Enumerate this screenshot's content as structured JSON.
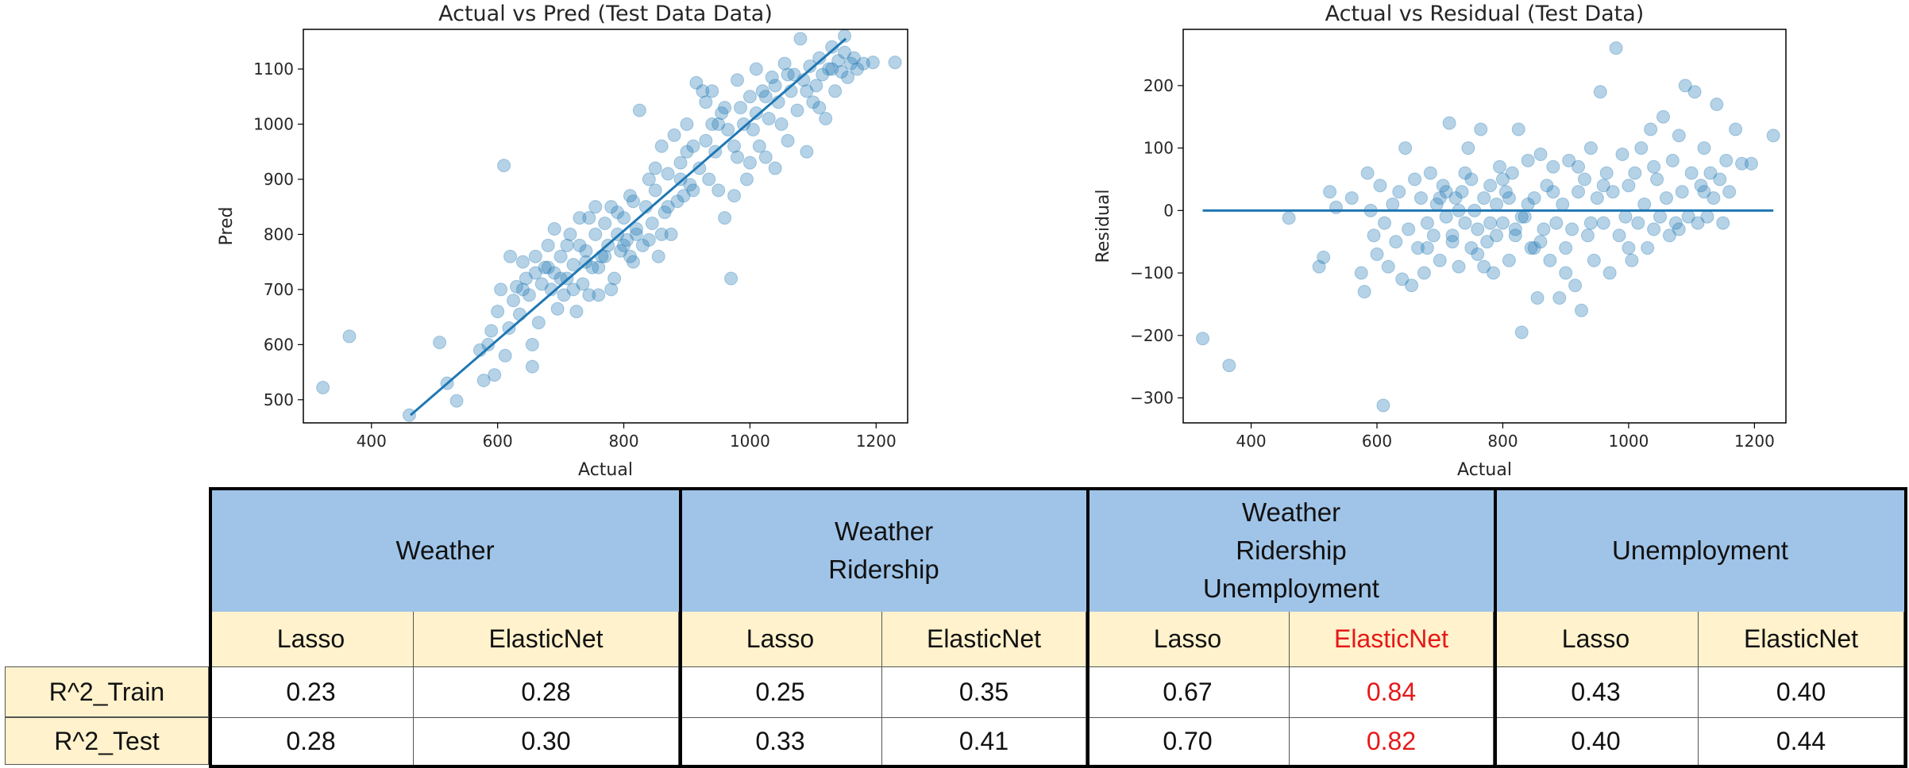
{
  "chart_data": [
    {
      "type": "scatter",
      "title": "Actual vs Pred (Test Data Data)",
      "xlabel": "Actual",
      "ylabel": "Pred",
      "xlim": [
        292,
        1250
      ],
      "ylim": [
        458,
        1172
      ],
      "xticks": [
        400,
        600,
        800,
        1000,
        1200
      ],
      "yticks": [
        500,
        600,
        700,
        800,
        900,
        1000,
        1100
      ],
      "grid": false,
      "color": "#1f77b4",
      "fit_line": {
        "x": [
          462,
          1152
        ],
        "y": [
          472,
          1155
        ]
      },
      "points": [
        [
          323,
          522
        ],
        [
          365,
          615
        ],
        [
          460,
          472
        ],
        [
          508,
          604
        ],
        [
          520,
          530
        ],
        [
          535,
          498
        ],
        [
          572,
          590
        ],
        [
          578,
          535
        ],
        [
          585,
          600
        ],
        [
          590,
          625
        ],
        [
          595,
          545
        ],
        [
          600,
          660
        ],
        [
          605,
          700
        ],
        [
          610,
          925
        ],
        [
          612,
          580
        ],
        [
          618,
          630
        ],
        [
          625,
          680
        ],
        [
          630,
          705
        ],
        [
          635,
          655
        ],
        [
          640,
          750
        ],
        [
          645,
          720
        ],
        [
          650,
          690
        ],
        [
          655,
          560
        ],
        [
          660,
          760
        ],
        [
          665,
          640
        ],
        [
          670,
          710
        ],
        [
          675,
          740
        ],
        [
          680,
          780
        ],
        [
          685,
          700
        ],
        [
          690,
          730
        ],
        [
          695,
          665
        ],
        [
          700,
          760
        ],
        [
          705,
          690
        ],
        [
          710,
          720
        ],
        [
          715,
          800
        ],
        [
          720,
          745
        ],
        [
          725,
          660
        ],
        [
          730,
          780
        ],
        [
          735,
          710
        ],
        [
          740,
          770
        ],
        [
          745,
          830
        ],
        [
          750,
          740
        ],
        [
          755,
          800
        ],
        [
          760,
          690
        ],
        [
          765,
          760
        ],
        [
          770,
          820
        ],
        [
          775,
          780
        ],
        [
          780,
          850
        ],
        [
          785,
          720
        ],
        [
          790,
          800
        ],
        [
          795,
          770
        ],
        [
          800,
          830
        ],
        [
          805,
          790
        ],
        [
          810,
          870
        ],
        [
          815,
          750
        ],
        [
          820,
          810
        ],
        [
          825,
          1025
        ],
        [
          830,
          780
        ],
        [
          835,
          850
        ],
        [
          840,
          900
        ],
        [
          845,
          820
        ],
        [
          850,
          880
        ],
        [
          855,
          760
        ],
        [
          860,
          960
        ],
        [
          865,
          840
        ],
        [
          870,
          910
        ],
        [
          875,
          800
        ],
        [
          880,
          980
        ],
        [
          885,
          860
        ],
        [
          890,
          930
        ],
        [
          895,
          870
        ],
        [
          900,
          1000
        ],
        [
          905,
          890
        ],
        [
          910,
          960
        ],
        [
          915,
          1075
        ],
        [
          920,
          920
        ],
        [
          925,
          1060
        ],
        [
          930,
          1040
        ],
        [
          935,
          900
        ],
        [
          940,
          1000
        ],
        [
          945,
          950
        ],
        [
          950,
          880
        ],
        [
          955,
          1020
        ],
        [
          960,
          830
        ],
        [
          965,
          990
        ],
        [
          970,
          720
        ],
        [
          975,
          960
        ],
        [
          980,
          940
        ],
        [
          985,
          1030
        ],
        [
          990,
          1000
        ],
        [
          995,
          900
        ],
        [
          1000,
          1050
        ],
        [
          1005,
          990
        ],
        [
          1010,
          1100
        ],
        [
          1015,
          960
        ],
        [
          1020,
          1060
        ],
        [
          1025,
          940
        ],
        [
          1030,
          1010
        ],
        [
          1035,
          1085
        ],
        [
          1040,
          920
        ],
        [
          1045,
          1040
        ],
        [
          1050,
          1000
        ],
        [
          1055,
          1110
        ],
        [
          1060,
          970
        ],
        [
          1065,
          1060
        ],
        [
          1070,
          1090
        ],
        [
          1075,
          1025
        ],
        [
          1080,
          1155
        ],
        [
          1085,
          1080
        ],
        [
          1090,
          950
        ],
        [
          1095,
          1105
        ],
        [
          1100,
          1040
        ],
        [
          1105,
          1070
        ],
        [
          1110,
          1120
        ],
        [
          1115,
          1090
        ],
        [
          1120,
          1010
        ],
        [
          1125,
          1100
        ],
        [
          1130,
          1140
        ],
        [
          1135,
          1060
        ],
        [
          1140,
          1115
        ],
        [
          1145,
          1095
        ],
        [
          1150,
          1130
        ],
        [
          1155,
          1085
        ],
        [
          1160,
          1110
        ],
        [
          1165,
          1120
        ],
        [
          1170,
          1100
        ],
        [
          1180,
          1110
        ],
        [
          1195,
          1112
        ],
        [
          1230,
          1112
        ],
        [
          620,
          760
        ],
        [
          640,
          700
        ],
        [
          655,
          600
        ],
        [
          660,
          730
        ],
        [
          680,
          740
        ],
        [
          690,
          810
        ],
        [
          700,
          720
        ],
        [
          710,
          780
        ],
        [
          720,
          700
        ],
        [
          730,
          830
        ],
        [
          740,
          750
        ],
        [
          745,
          690
        ],
        [
          755,
          850
        ],
        [
          760,
          740
        ],
        [
          770,
          760
        ],
        [
          780,
          700
        ],
        [
          790,
          840
        ],
        [
          800,
          780
        ],
        [
          810,
          760
        ],
        [
          815,
          860
        ],
        [
          820,
          800
        ],
        [
          840,
          790
        ],
        [
          850,
          920
        ],
        [
          860,
          800
        ],
        [
          870,
          850
        ],
        [
          890,
          900
        ],
        [
          900,
          950
        ],
        [
          910,
          880
        ],
        [
          930,
          970
        ],
        [
          940,
          1060
        ],
        [
          950,
          1000
        ],
        [
          960,
          1030
        ],
        [
          975,
          870
        ],
        [
          980,
          1080
        ],
        [
          1000,
          930
        ],
        [
          1010,
          1020
        ],
        [
          1025,
          1050
        ],
        [
          1040,
          1070
        ],
        [
          1060,
          1090
        ],
        [
          1090,
          1060
        ],
        [
          1110,
          1030
        ],
        [
          1130,
          1100
        ],
        [
          1150,
          1160
        ]
      ]
    },
    {
      "type": "scatter",
      "title": "Actual vs Residual (Test Data)",
      "xlabel": "Actual",
      "ylabel": "Residual",
      "xlim": [
        292,
        1250
      ],
      "ylim": [
        -340,
        290
      ],
      "xticks": [
        400,
        600,
        800,
        1000,
        1200
      ],
      "yticks": [
        -300,
        -200,
        -100,
        0,
        100,
        200
      ],
      "grid": false,
      "color": "#1f77b4",
      "zero_line": {
        "x": [
          323,
          1230
        ],
        "y": [
          0,
          0
        ]
      },
      "points": [
        [
          323,
          -205
        ],
        [
          365,
          -248
        ],
        [
          460,
          -12
        ],
        [
          508,
          -90
        ],
        [
          515,
          -75
        ],
        [
          525,
          30
        ],
        [
          535,
          5
        ],
        [
          560,
          20
        ],
        [
          575,
          -100
        ],
        [
          580,
          -130
        ],
        [
          585,
          60
        ],
        [
          590,
          0
        ],
        [
          595,
          -40
        ],
        [
          600,
          -70
        ],
        [
          605,
          40
        ],
        [
          610,
          -312
        ],
        [
          612,
          -20
        ],
        [
          618,
          -90
        ],
        [
          625,
          10
        ],
        [
          630,
          -50
        ],
        [
          635,
          30
        ],
        [
          640,
          -110
        ],
        [
          645,
          100
        ],
        [
          650,
          -30
        ],
        [
          655,
          -120
        ],
        [
          660,
          50
        ],
        [
          665,
          -60
        ],
        [
          670,
          20
        ],
        [
          675,
          -100
        ],
        [
          680,
          -20
        ],
        [
          685,
          60
        ],
        [
          690,
          -40
        ],
        [
          695,
          10
        ],
        [
          700,
          -80
        ],
        [
          705,
          40
        ],
        [
          710,
          -10
        ],
        [
          715,
          140
        ],
        [
          720,
          -50
        ],
        [
          725,
          20
        ],
        [
          730,
          -90
        ],
        [
          735,
          30
        ],
        [
          740,
          -20
        ],
        [
          745,
          100
        ],
        [
          750,
          -60
        ],
        [
          755,
          0
        ],
        [
          760,
          -30
        ],
        [
          765,
          130
        ],
        [
          770,
          20
        ],
        [
          775,
          -50
        ],
        [
          780,
          40
        ],
        [
          785,
          -100
        ],
        [
          790,
          10
        ],
        [
          795,
          70
        ],
        [
          800,
          -20
        ],
        [
          805,
          30
        ],
        [
          810,
          -80
        ],
        [
          815,
          60
        ],
        [
          820,
          -40
        ],
        [
          825,
          130
        ],
        [
          830,
          -195
        ],
        [
          835,
          -10
        ],
        [
          840,
          80
        ],
        [
          845,
          -60
        ],
        [
          850,
          20
        ],
        [
          855,
          -140
        ],
        [
          860,
          90
        ],
        [
          865,
          -30
        ],
        [
          870,
          40
        ],
        [
          875,
          -80
        ],
        [
          880,
          70
        ],
        [
          885,
          -20
        ],
        [
          890,
          -140
        ],
        [
          895,
          10
        ],
        [
          900,
          -60
        ],
        [
          905,
          80
        ],
        [
          910,
          -30
        ],
        [
          915,
          -120
        ],
        [
          920,
          30
        ],
        [
          925,
          -160
        ],
        [
          930,
          50
        ],
        [
          935,
          -40
        ],
        [
          940,
          100
        ],
        [
          945,
          -80
        ],
        [
          950,
          20
        ],
        [
          955,
          190
        ],
        [
          960,
          -20
        ],
        [
          965,
          60
        ],
        [
          970,
          -100
        ],
        [
          975,
          30
        ],
        [
          980,
          260
        ],
        [
          985,
          -40
        ],
        [
          990,
          90
        ],
        [
          995,
          -10
        ],
        [
          1000,
          40
        ],
        [
          1005,
          -80
        ],
        [
          1010,
          60
        ],
        [
          1015,
          -20
        ],
        [
          1020,
          100
        ],
        [
          1025,
          10
        ],
        [
          1030,
          -60
        ],
        [
          1035,
          130
        ],
        [
          1040,
          -30
        ],
        [
          1045,
          50
        ],
        [
          1050,
          -10
        ],
        [
          1055,
          150
        ],
        [
          1060,
          20
        ],
        [
          1065,
          -40
        ],
        [
          1070,
          80
        ],
        [
          1075,
          -20
        ],
        [
          1080,
          120
        ],
        [
          1085,
          30
        ],
        [
          1090,
          200
        ],
        [
          1095,
          -10
        ],
        [
          1100,
          60
        ],
        [
          1105,
          190
        ],
        [
          1110,
          -20
        ],
        [
          1115,
          40
        ],
        [
          1120,
          100
        ],
        [
          1125,
          -10
        ],
        [
          1130,
          60
        ],
        [
          1135,
          20
        ],
        [
          1140,
          170
        ],
        [
          1145,
          50
        ],
        [
          1150,
          -20
        ],
        [
          1155,
          80
        ],
        [
          1160,
          30
        ],
        [
          1170,
          130
        ],
        [
          1180,
          75
        ],
        [
          1195,
          75
        ],
        [
          1230,
          120
        ],
        [
          700,
          20
        ],
        [
          720,
          -40
        ],
        [
          740,
          60
        ],
        [
          760,
          -70
        ],
        [
          780,
          -20
        ],
        [
          800,
          50
        ],
        [
          820,
          -30
        ],
        [
          840,
          10
        ],
        [
          860,
          -50
        ],
        [
          880,
          30
        ],
        [
          900,
          -100
        ],
        [
          920,
          70
        ],
        [
          940,
          -20
        ],
        [
          960,
          40
        ],
        [
          1000,
          -60
        ],
        [
          1040,
          70
        ],
        [
          1080,
          -30
        ],
        [
          1120,
          30
        ],
        [
          680,
          -60
        ],
        [
          710,
          30
        ],
        [
          730,
          0
        ],
        [
          750,
          50
        ],
        [
          770,
          -90
        ],
        [
          790,
          -40
        ],
        [
          810,
          20
        ],
        [
          830,
          -10
        ],
        [
          850,
          -60
        ]
      ]
    }
  ],
  "table": {
    "groups": [
      {
        "label": "Weather"
      },
      {
        "label": "Weather\nRidership"
      },
      {
        "label": "Weather\nRidership\nUnemployment"
      },
      {
        "label": "Unemployment"
      }
    ],
    "models": [
      "Lasso",
      "ElasticNet",
      "Lasso",
      "ElasticNet",
      "Lasso",
      "ElasticNet",
      "Lasso",
      "ElasticNet"
    ],
    "highlight_col": 5,
    "highlight_color": "#e61919",
    "rows": [
      {
        "label": "R^2_Train",
        "values": [
          "0.23",
          "0.28",
          "0.25",
          "0.35",
          "0.67",
          "0.84",
          "0.43",
          "0.40"
        ]
      },
      {
        "label": "R^2_Test",
        "values": [
          "0.28",
          "0.30",
          "0.33",
          "0.41",
          "0.70",
          "0.82",
          "0.40",
          "0.44"
        ]
      }
    ]
  }
}
